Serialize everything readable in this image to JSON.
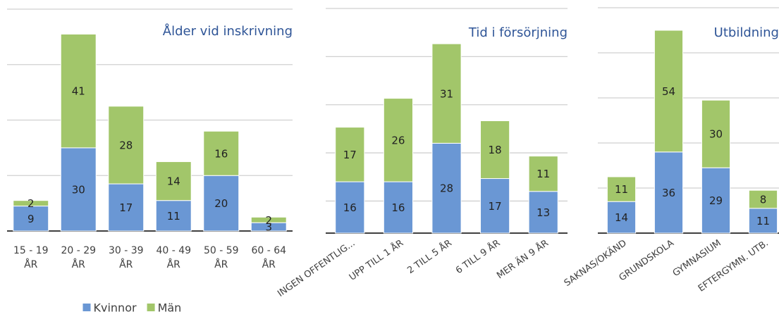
{
  "chart_data": [
    {
      "type": "bar",
      "title": "Ålder vid inskrivning",
      "categories": [
        "15 - 19 ÅR",
        "20 - 29 ÅR",
        "30 - 39 ÅR",
        "40 - 49 ÅR",
        "50 - 59 ÅR",
        "60 - 64 ÅR"
      ],
      "series": [
        {
          "name": "Kvinnor",
          "color": "#6a97d4",
          "values": [
            9,
            30,
            17,
            11,
            20,
            3
          ]
        },
        {
          "name": "Män",
          "color": "#a2c66a",
          "values": [
            2,
            41,
            28,
            14,
            16,
            2
          ]
        }
      ],
      "ylim": [
        0,
        80
      ],
      "yticks": [
        0,
        20,
        40,
        60,
        80
      ],
      "grid": true,
      "legend": "bottom"
    },
    {
      "type": "bar",
      "title": "Tid i försörjning",
      "categories": [
        "INGEN OFFENTLIG...",
        "UPP TILL 1 ÅR",
        "2 TILL 5 ÅR",
        "6 TILL 9 ÅR",
        "MER ÄN 9 ÅR"
      ],
      "series": [
        {
          "color": "#6a97d4",
          "values": [
            16,
            16,
            28,
            17,
            13
          ]
        },
        {
          "color": "#a2c66a",
          "values": [
            17,
            26,
            31,
            18,
            11
          ]
        }
      ],
      "ylim": [
        0,
        70
      ],
      "yticks": [
        0,
        10,
        25,
        40,
        55,
        70
      ],
      "grid": true
    },
    {
      "type": "bar",
      "title": "Utbildning",
      "categories": [
        "SAKNAS/OKÄND",
        "GRUNDSKOLA",
        "GYMNASIUM",
        "EFTERGYMN. UTB."
      ],
      "series": [
        {
          "color": "#6a97d4",
          "values": [
            14,
            36,
            29,
            11
          ]
        },
        {
          "color": "#a2c66a",
          "values": [
            11,
            54,
            30,
            8
          ]
        }
      ],
      "ylim": [
        0,
        100
      ],
      "yticks": [
        0,
        20,
        40,
        60,
        80,
        100
      ],
      "grid": true
    }
  ]
}
